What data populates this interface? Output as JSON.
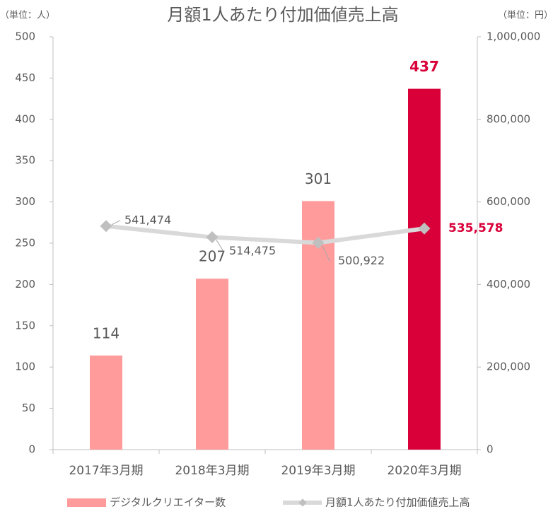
{
  "chart_data": {
    "type": "bar_line",
    "title": "月額1人あたり付加価値売上高",
    "y_unit": "（単位：人）",
    "y2_unit": "（単位：円）",
    "categories": [
      "2017年3月期",
      "2018年3月期",
      "2019年3月期",
      "2020年3月期"
    ],
    "series": [
      {
        "name": "デジタルクリエイター数",
        "type": "bar",
        "color": "#ff9b9b",
        "colors": [
          "#ff9b9b",
          "#ff9b9b",
          "#ff9b9b",
          "#d9003a"
        ],
        "values": [
          114,
          207,
          301,
          437
        ]
      },
      {
        "name": "月額1人あたり付加価値売上高",
        "type": "line",
        "axis": "y2",
        "color": "#d9d9d9",
        "marker_color": "#bfbfbf",
        "values": [
          541474,
          514475,
          500922,
          535578
        ],
        "value_labels": [
          "541,474",
          "514,475",
          "500,922",
          "535,578"
        ]
      }
    ],
    "ylim": [
      0,
      500
    ],
    "yticks": [
      0,
      50,
      100,
      150,
      200,
      250,
      300,
      350,
      400,
      450,
      500
    ],
    "y2lim": [
      0,
      1000000
    ],
    "y2ticks": [
      0,
      {
        "value": 200000,
        "label": "200,000"
      },
      {
        "value": 400000,
        "label": "400,000"
      },
      {
        "value": 600000,
        "label": "600,000"
      },
      {
        "value": 800000,
        "label": "800,000"
      },
      {
        "value": 1000000,
        "label": "1,000,000"
      }
    ],
    "legend": "bottom"
  }
}
